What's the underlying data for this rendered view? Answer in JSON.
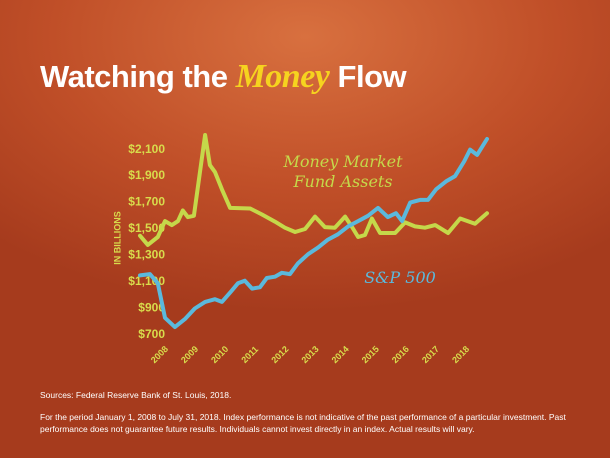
{
  "chart_data": {
    "type": "line",
    "title": [
      "Watching the",
      "Money",
      "Flow"
    ],
    "ylabel": "IN BILLIONS",
    "ylim": [
      700,
      2250
    ],
    "yticks": [
      {
        "value": 700,
        "label": "$700"
      },
      {
        "value": 900,
        "label": "$900"
      },
      {
        "value": 1100,
        "label": "$1,100"
      },
      {
        "value": 1300,
        "label": "$1,300"
      },
      {
        "value": 1500,
        "label": "$1,500"
      },
      {
        "value": 1700,
        "label": "$1,700"
      },
      {
        "value": 1900,
        "label": "$1,900"
      },
      {
        "value": 2100,
        "label": "$2,100"
      }
    ],
    "xlim": [
      2007.34,
      2018.86
    ],
    "xticks": [
      2008,
      2009,
      2010,
      2011,
      2012,
      2013,
      2014,
      2015,
      2016,
      2017,
      2018
    ],
    "series": [
      {
        "name": "Money Market Fund Assets",
        "color": "#c5d84a",
        "x": [
          2007.34,
          2007.6,
          2007.93,
          2008.17,
          2008.4,
          2008.6,
          2008.76,
          2008.93,
          2009.13,
          2009.5,
          2009.66,
          2009.83,
          2010.06,
          2010.33,
          2011.0,
          2011.39,
          2011.82,
          2012.15,
          2012.49,
          2012.82,
          2013.15,
          2013.48,
          2013.81,
          2014.15,
          2014.38,
          2014.58,
          2014.81,
          2015.04,
          2015.31,
          2015.81,
          2016.14,
          2016.47,
          2016.8,
          2017.14,
          2017.57,
          2017.97,
          2018.46,
          2018.86
        ],
        "values": [
          1450,
          1380,
          1440,
          1560,
          1530,
          1560,
          1640,
          1590,
          1600,
          2210,
          1983,
          1930,
          1800,
          1660,
          1655,
          1610,
          1556,
          1510,
          1478,
          1500,
          1594,
          1515,
          1510,
          1594,
          1515,
          1440,
          1455,
          1580,
          1470,
          1470,
          1550,
          1520,
          1510,
          1530,
          1470,
          1580,
          1540,
          1620
        ]
      },
      {
        "name": "S&P 500",
        "color": "#5bb9dc",
        "x": [
          2007.34,
          2007.67,
          2007.93,
          2008.17,
          2008.5,
          2008.83,
          2009.16,
          2009.5,
          2009.83,
          2010.06,
          2010.33,
          2010.59,
          2010.82,
          2011.06,
          2011.32,
          2011.55,
          2011.82,
          2012.05,
          2012.32,
          2012.58,
          2012.92,
          2013.25,
          2013.58,
          2013.91,
          2014.25,
          2014.58,
          2014.91,
          2015.24,
          2015.57,
          2015.84,
          2016.04,
          2016.31,
          2016.64,
          2016.9,
          2017.17,
          2017.5,
          2017.8,
          2018.1,
          2018.3,
          2018.53,
          2018.86
        ],
        "values": [
          1150,
          1160,
          1090,
          830,
          760,
          820,
          900,
          950,
          970,
          950,
          1020,
          1090,
          1110,
          1050,
          1060,
          1130,
          1140,
          1170,
          1160,
          1240,
          1310,
          1360,
          1420,
          1460,
          1520,
          1560,
          1600,
          1660,
          1590,
          1620,
          1560,
          1700,
          1720,
          1720,
          1800,
          1860,
          1900,
          2010,
          2100,
          2060,
          2180
        ]
      }
    ],
    "source": "Sources: Federal Reserve Bank of St. Louis, 2018.",
    "note": "For the period January 1, 2008 to July 31, 2018. Index performance is not indicative of the past performance of a particular investment. Past performance does not guarantee future results. Individuals cannot invest directly in an index. Actual results will vary."
  }
}
